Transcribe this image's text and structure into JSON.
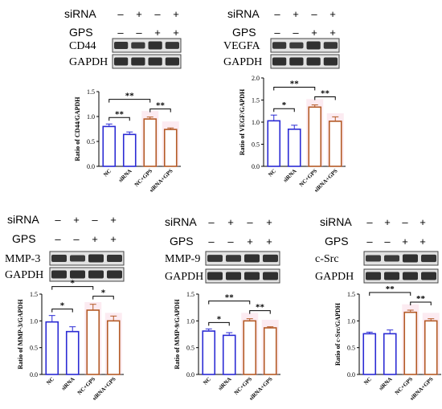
{
  "colors": {
    "nc": "#2b2bd4",
    "sirna": "#2b2bd4",
    "nc_gps": "#b45a26",
    "sirna_gps": "#b45a26",
    "band": "#1e1e1e",
    "blot_bg": "#e2e2e2",
    "pink_glow": "#f7c6d8"
  },
  "treatment_signs": {
    "sirna": [
      "–",
      "+",
      "–",
      "+"
    ],
    "gps": [
      "–",
      "–",
      "+",
      "+"
    ]
  },
  "row_labels": {
    "sirna": "siRNA",
    "gps": "GPS"
  },
  "loading_control": "GAPDH",
  "chart_data": [
    {
      "type": "bar",
      "protein": "CD44",
      "categories": [
        "NC",
        "siRNA",
        "NC+GPS",
        "siRNA+GPS"
      ],
      "values": [
        0.8,
        0.64,
        0.95,
        0.74
      ],
      "errors": [
        0.05,
        0.05,
        0.04,
        0.03
      ],
      "ylabel": "Ratio of CD44/GAPDH",
      "ylim": [
        0,
        1.5
      ],
      "yticks": [
        "0.0",
        "0.5",
        "1.0",
        "1.5"
      ],
      "significance": [
        {
          "from": 0,
          "to": 1,
          "label": "**"
        },
        {
          "from": 0,
          "to": 2,
          "label": "**"
        },
        {
          "from": 2,
          "to": 3,
          "label": "**"
        }
      ]
    },
    {
      "type": "bar",
      "protein": "VEGFA",
      "categories": [
        "NC",
        "siRNA",
        "NC+GPS",
        "siRNA+GPS"
      ],
      "values": [
        1.03,
        0.84,
        1.34,
        1.02
      ],
      "errors": [
        0.13,
        0.09,
        0.05,
        0.1
      ],
      "ylabel": "Ratio of VEGF/GAPDH",
      "ylim": [
        0,
        2.0
      ],
      "yticks": [
        "0.0",
        "0.5",
        "1.0",
        "1.5",
        "2.0"
      ],
      "significance": [
        {
          "from": 0,
          "to": 1,
          "label": "*"
        },
        {
          "from": 0,
          "to": 2,
          "label": "**"
        },
        {
          "from": 2,
          "to": 3,
          "label": "**"
        }
      ]
    },
    {
      "type": "bar",
      "protein": "MMP-3",
      "categories": [
        "NC",
        "siRNA",
        "NC+GPS",
        "siRNA+GPS"
      ],
      "values": [
        0.98,
        0.8,
        1.2,
        1.0
      ],
      "errors": [
        0.12,
        0.09,
        0.11,
        0.09
      ],
      "ylabel": "Ratio of MMP-3/GAPDH",
      "ylim": [
        0,
        1.5
      ],
      "yticks": [
        "0.0",
        "0.5",
        "1.0",
        "1.5"
      ],
      "significance": [
        {
          "from": 0,
          "to": 1,
          "label": "*"
        },
        {
          "from": 0,
          "to": 2,
          "label": "*"
        },
        {
          "from": 2,
          "to": 3,
          "label": "*"
        }
      ]
    },
    {
      "type": "bar",
      "protein": "MMP-9",
      "categories": [
        "NC",
        "siRNA",
        "NC+GPS",
        "siRNA+GPS"
      ],
      "values": [
        0.81,
        0.73,
        1.0,
        0.87
      ],
      "errors": [
        0.04,
        0.05,
        0.04,
        0.02
      ],
      "ylabel": "Ratio of MMP-9/GAPDH",
      "ylim": [
        0,
        1.5
      ],
      "yticks": [
        "0.0",
        "0.5",
        "1.0",
        "1.5"
      ],
      "significance": [
        {
          "from": 0,
          "to": 1,
          "label": "*"
        },
        {
          "from": 0,
          "to": 2,
          "label": "**"
        },
        {
          "from": 2,
          "to": 3,
          "label": "**"
        }
      ]
    },
    {
      "type": "bar",
      "protein": "c-Src",
      "categories": [
        "NC",
        "siRNA",
        "NC+GPS",
        "siRNA+GPS"
      ],
      "values": [
        0.76,
        0.76,
        1.16,
        1.0
      ],
      "errors": [
        0.03,
        0.07,
        0.04,
        0.04
      ],
      "ylabel": "Ratio of c-Src/GAPDH",
      "ylim": [
        0,
        1.5
      ],
      "yticks": [
        "0.0",
        "0.5",
        "1.0",
        "1.5"
      ],
      "significance": [
        {
          "from": 0,
          "to": 2,
          "label": "**"
        },
        {
          "from": 2,
          "to": 3,
          "label": "**"
        }
      ]
    }
  ]
}
